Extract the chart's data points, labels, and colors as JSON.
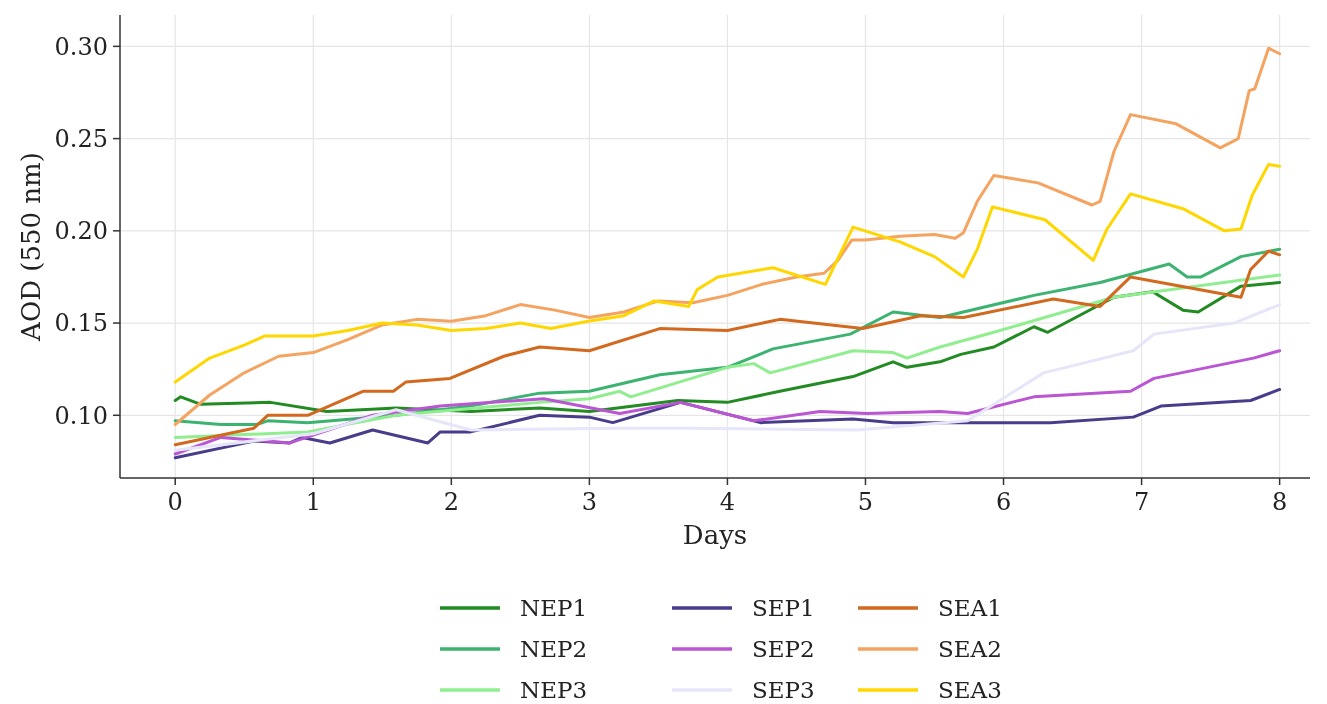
{
  "chart_data": {
    "type": "line",
    "xlabel": "Days",
    "ylabel": "AOD (550 nm)",
    "xlim": [
      -0.4,
      8.22
    ],
    "ylim": [
      0.066,
      0.317
    ],
    "xticks": [
      0,
      1,
      2,
      3,
      4,
      5,
      6,
      7,
      8
    ],
    "yticks": [
      {
        "value": 0.1,
        "label": "0.10"
      },
      {
        "value": 0.15,
        "label": "0.15"
      },
      {
        "value": 0.2,
        "label": "0.20"
      },
      {
        "value": 0.25,
        "label": "0.25"
      },
      {
        "value": 0.3,
        "label": "0.30"
      }
    ],
    "grid": true,
    "legend": "bottom",
    "line_style": "solid",
    "marker": "none",
    "series": [
      {
        "name": "NEP1",
        "color": "#228b22",
        "x": [
          0,
          0.04,
          0.18,
          0.69,
          1.1,
          1.6,
          2.14,
          2.64,
          3.0,
          3.64,
          4.0,
          4.38,
          4.91,
          5.2,
          5.3,
          5.54,
          5.69,
          5.93,
          6.22,
          6.32,
          6.8,
          7.08,
          7.3,
          7.41,
          7.72,
          8.0
        ],
        "values": [
          0.108,
          0.11,
          0.106,
          0.107,
          0.102,
          0.104,
          0.102,
          0.104,
          0.102,
          0.108,
          0.107,
          0.113,
          0.121,
          0.129,
          0.126,
          0.129,
          0.133,
          0.137,
          0.148,
          0.145,
          0.164,
          0.167,
          0.157,
          0.156,
          0.17,
          0.172
        ]
      },
      {
        "name": "NEP2",
        "color": "#3cb371",
        "x": [
          0,
          0.33,
          0.59,
          0.67,
          0.96,
          1.6,
          2.14,
          2.64,
          3.0,
          3.51,
          4.0,
          4.33,
          4.89,
          5.2,
          5.54,
          6.22,
          6.7,
          7.2,
          7.33,
          7.43,
          7.72,
          8.0
        ],
        "values": [
          0.097,
          0.095,
          0.095,
          0.097,
          0.096,
          0.1,
          0.105,
          0.112,
          0.113,
          0.122,
          0.126,
          0.136,
          0.144,
          0.156,
          0.153,
          0.165,
          0.172,
          0.182,
          0.175,
          0.175,
          0.186,
          0.19
        ]
      },
      {
        "name": "NEP3",
        "color": "#90ee90",
        "x": [
          0,
          0.96,
          1.6,
          2.64,
          3.0,
          3.22,
          3.3,
          4.0,
          4.19,
          4.31,
          4.91,
          5.2,
          5.3,
          5.54,
          5.93,
          6.8,
          8.0
        ],
        "values": [
          0.088,
          0.091,
          0.1,
          0.107,
          0.109,
          0.113,
          0.11,
          0.126,
          0.128,
          0.123,
          0.135,
          0.134,
          0.131,
          0.137,
          0.145,
          0.164,
          0.176
        ]
      },
      {
        "name": "SEP1",
        "color": "#483d8b",
        "x": [
          0,
          0.57,
          0.83,
          0.92,
          1.12,
          1.43,
          1.83,
          1.92,
          2.14,
          2.64,
          3.0,
          3.17,
          3.66,
          4.24,
          4.91,
          5.2,
          5.96,
          6.34,
          6.94,
          7.14,
          7.79,
          8.0
        ],
        "values": [
          0.077,
          0.086,
          0.085,
          0.088,
          0.085,
          0.092,
          0.085,
          0.091,
          0.091,
          0.1,
          0.099,
          0.096,
          0.107,
          0.096,
          0.098,
          0.096,
          0.096,
          0.096,
          0.099,
          0.105,
          0.108,
          0.114
        ]
      },
      {
        "name": "SEP2",
        "color": "#ba55d3",
        "x": [
          0,
          0.33,
          0.83,
          1.43,
          1.92,
          2.67,
          3.22,
          3.66,
          4.19,
          4.67,
          5.01,
          5.54,
          5.74,
          6.22,
          6.92,
          7.09,
          7.81,
          8.0
        ],
        "values": [
          0.079,
          0.088,
          0.085,
          0.1,
          0.105,
          0.109,
          0.101,
          0.107,
          0.097,
          0.102,
          0.101,
          0.102,
          0.101,
          0.11,
          0.113,
          0.12,
          0.131,
          0.135
        ]
      },
      {
        "name": "SEP3",
        "color": "#e6e6fa",
        "x": [
          0,
          1.0,
          1.6,
          2.14,
          3.17,
          3.71,
          4.94,
          5.74,
          6.29,
          6.94,
          7.09,
          7.67,
          8.0
        ],
        "values": [
          0.081,
          0.09,
          0.103,
          0.092,
          0.093,
          0.093,
          0.092,
          0.097,
          0.123,
          0.135,
          0.144,
          0.15,
          0.16
        ]
      },
      {
        "name": "SEA1",
        "color": "#d2691e",
        "x": [
          0,
          0.57,
          0.67,
          0.96,
          1.36,
          1.58,
          1.67,
          1.99,
          2.38,
          2.64,
          3.0,
          3.51,
          4.0,
          4.38,
          4.98,
          5.4,
          5.71,
          6.36,
          6.7,
          6.92,
          7.72,
          7.79,
          7.92,
          8.0
        ],
        "values": [
          0.084,
          0.093,
          0.1,
          0.1,
          0.113,
          0.113,
          0.118,
          0.12,
          0.132,
          0.137,
          0.135,
          0.147,
          0.146,
          0.152,
          0.147,
          0.154,
          0.153,
          0.163,
          0.159,
          0.175,
          0.164,
          0.179,
          0.189,
          0.187
        ]
      },
      {
        "name": "SEA2",
        "color": "#f4a460",
        "x": [
          0,
          0.25,
          0.5,
          0.75,
          1.0,
          1.25,
          1.5,
          1.75,
          2.0,
          2.25,
          2.5,
          2.75,
          3.0,
          3.25,
          3.5,
          3.75,
          4.0,
          4.25,
          4.5,
          4.7,
          4.8,
          4.9,
          5.0,
          5.25,
          5.5,
          5.65,
          5.71,
          5.81,
          5.93,
          6.25,
          6.64,
          6.7,
          6.8,
          6.92,
          7.25,
          7.57,
          7.7,
          7.78,
          7.82,
          7.92,
          8.0
        ],
        "values": [
          0.095,
          0.111,
          0.123,
          0.132,
          0.134,
          0.141,
          0.149,
          0.152,
          0.151,
          0.154,
          0.16,
          0.157,
          0.153,
          0.156,
          0.162,
          0.161,
          0.165,
          0.171,
          0.175,
          0.177,
          0.184,
          0.195,
          0.195,
          0.197,
          0.198,
          0.196,
          0.199,
          0.216,
          0.23,
          0.226,
          0.214,
          0.216,
          0.243,
          0.263,
          0.258,
          0.245,
          0.25,
          0.276,
          0.277,
          0.299,
          0.296
        ]
      },
      {
        "name": "SEA3",
        "color": "#ffd700",
        "x": [
          0,
          0.25,
          0.5,
          0.65,
          1.0,
          1.25,
          1.5,
          1.75,
          2.0,
          2.25,
          2.5,
          2.72,
          2.99,
          3.25,
          3.47,
          3.72,
          3.78,
          3.93,
          4.33,
          4.71,
          4.8,
          4.91,
          5.25,
          5.5,
          5.71,
          5.81,
          5.92,
          6.3,
          6.65,
          6.75,
          6.92,
          7.3,
          7.6,
          7.72,
          7.8,
          7.92,
          8.0
        ],
        "values": [
          0.118,
          0.131,
          0.138,
          0.143,
          0.143,
          0.146,
          0.15,
          0.149,
          0.146,
          0.147,
          0.15,
          0.147,
          0.151,
          0.154,
          0.162,
          0.159,
          0.168,
          0.175,
          0.18,
          0.171,
          0.185,
          0.202,
          0.194,
          0.186,
          0.175,
          0.19,
          0.213,
          0.206,
          0.184,
          0.201,
          0.22,
          0.212,
          0.2,
          0.201,
          0.219,
          0.236,
          0.235
        ]
      }
    ]
  }
}
